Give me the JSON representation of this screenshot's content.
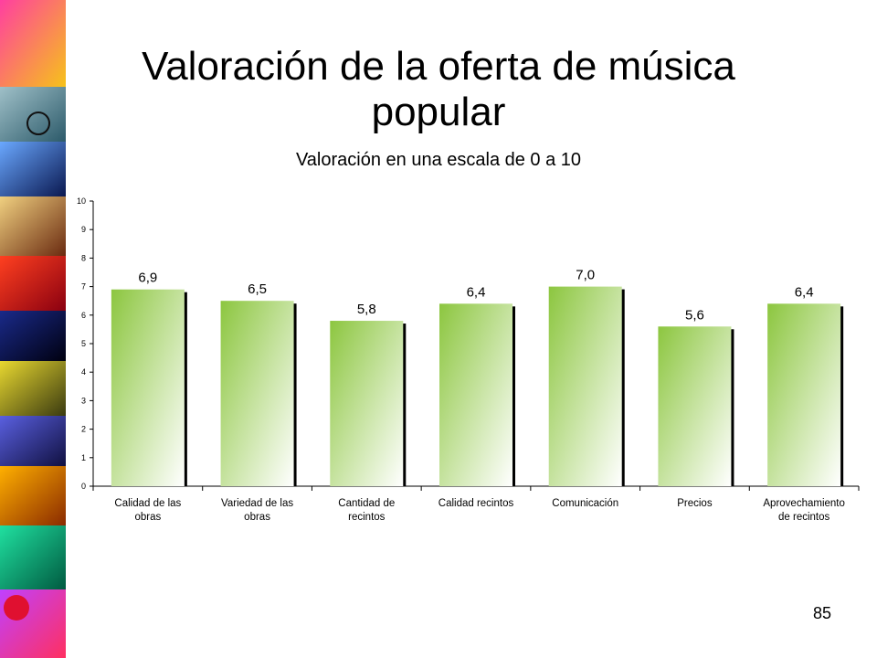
{
  "slide": {
    "title": "Valoración de la oferta de música popular",
    "subtitle": "Valoración en una escala de 0 a 10",
    "page_number": "85"
  },
  "decoration": {
    "side_strip": "photo-collage",
    "tile_colors": [
      "#e8147a",
      "#f5c400",
      "#3a7a8c",
      "#1a2a70",
      "#d04a10",
      "#c81e28",
      "#0a1030",
      "#b89a00",
      "#2a3a9a",
      "#d86a00",
      "#10b080",
      "#8a30c8"
    ]
  },
  "chart_data": {
    "type": "bar",
    "title": "",
    "xlabel": "",
    "ylabel": "",
    "categories": [
      [
        "Calidad de las",
        "obras"
      ],
      [
        "Variedad de las",
        "obras"
      ],
      [
        "Cantidad de",
        "recintos"
      ],
      [
        "Calidad recintos"
      ],
      [
        "Comunicación"
      ],
      [
        "Precios"
      ],
      [
        "Aprovechamiento",
        "de recintos"
      ]
    ],
    "values": [
      6.9,
      6.5,
      5.8,
      6.4,
      7.0,
      5.6,
      6.4
    ],
    "data_labels": [
      "6,9",
      "6,5",
      "5,8",
      "6,4",
      "7,0",
      "5,6",
      "6,4"
    ],
    "ylim": [
      0,
      10
    ],
    "yticks": [
      "0",
      "1",
      "2",
      "3",
      "4",
      "5",
      "6",
      "7",
      "8",
      "9",
      "10"
    ],
    "grid": false,
    "legend": "none",
    "bar_gradient": [
      "#8cc63f",
      "#ffffff"
    ],
    "bar_shadow": "#000000"
  }
}
